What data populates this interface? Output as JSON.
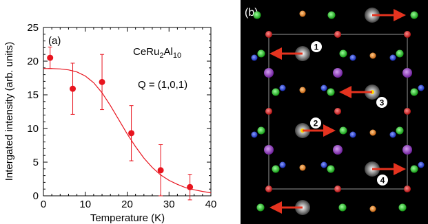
{
  "panel_a": {
    "label": "(a)",
    "compound": {
      "base": "CeRu",
      "sub1": "2",
      "mid": "Al",
      "sub2": "10"
    },
    "q_vector": "Q = (1,0,1)",
    "colors": {
      "data": "#e8141e",
      "axis": "#000000"
    }
  },
  "panel_b": {
    "label": "(b)",
    "site_numbers": [
      "1",
      "2",
      "3",
      "4"
    ],
    "colors": {
      "background": "#000000",
      "red_atom": "#e01818",
      "green_atom": "#22cc22",
      "blue_atom": "#1e3cdc",
      "orange_atom": "#f08a1e",
      "purple_atom": "#9b3fc4",
      "gray_atom": "#b0b0b0",
      "arrow": "#e5331f",
      "cell_line": "#bfbfbf"
    }
  },
  "chart_data": {
    "type": "scatter",
    "title": "",
    "xlabel": "Temperature (K)",
    "ylabel": "Intergated intensity (arb. units)",
    "xlim": [
      0,
      40
    ],
    "ylim": [
      0,
      25
    ],
    "x_ticks": [
      "0",
      "10",
      "20",
      "30",
      "40"
    ],
    "y_ticks": [
      "0",
      "5",
      "10",
      "15",
      "20",
      "25"
    ],
    "series": [
      {
        "x": [
          1.6,
          7,
          14,
          21,
          28,
          35
        ],
        "y": [
          20.5,
          15.9,
          16.9,
          9.3,
          3.8,
          1.3
        ],
        "yerr": [
          1.6,
          3.8,
          4.1,
          4.1,
          3.8,
          1.9
        ]
      }
    ],
    "fit_curve": {
      "x": [
        0,
        2,
        4,
        6,
        8,
        10,
        12,
        14,
        16,
        18,
        20,
        22,
        24,
        26,
        28,
        30,
        32,
        34,
        36,
        38,
        40
      ],
      "y": [
        18.9,
        18.9,
        18.85,
        18.7,
        18.4,
        17.8,
        16.8,
        15.3,
        13.4,
        11.3,
        9.2,
        7.3,
        5.6,
        4.2,
        3.1,
        2.3,
        1.7,
        1.2,
        0.9,
        0.65,
        0.45
      ]
    },
    "grid": false,
    "legend": "none"
  }
}
